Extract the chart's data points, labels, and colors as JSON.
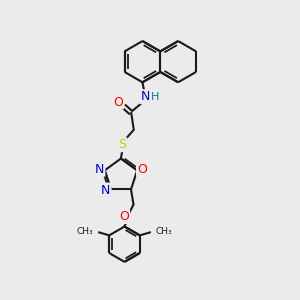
{
  "bg_color": "#ebebeb",
  "bond_color": "#1a1a1a",
  "atom_colors": {
    "O": "#ff0000",
    "N": "#0000cc",
    "S": "#cccc00",
    "H": "#008080",
    "C": "#1a1a1a"
  },
  "figsize": [
    3.0,
    3.0
  ],
  "dpi": 100
}
